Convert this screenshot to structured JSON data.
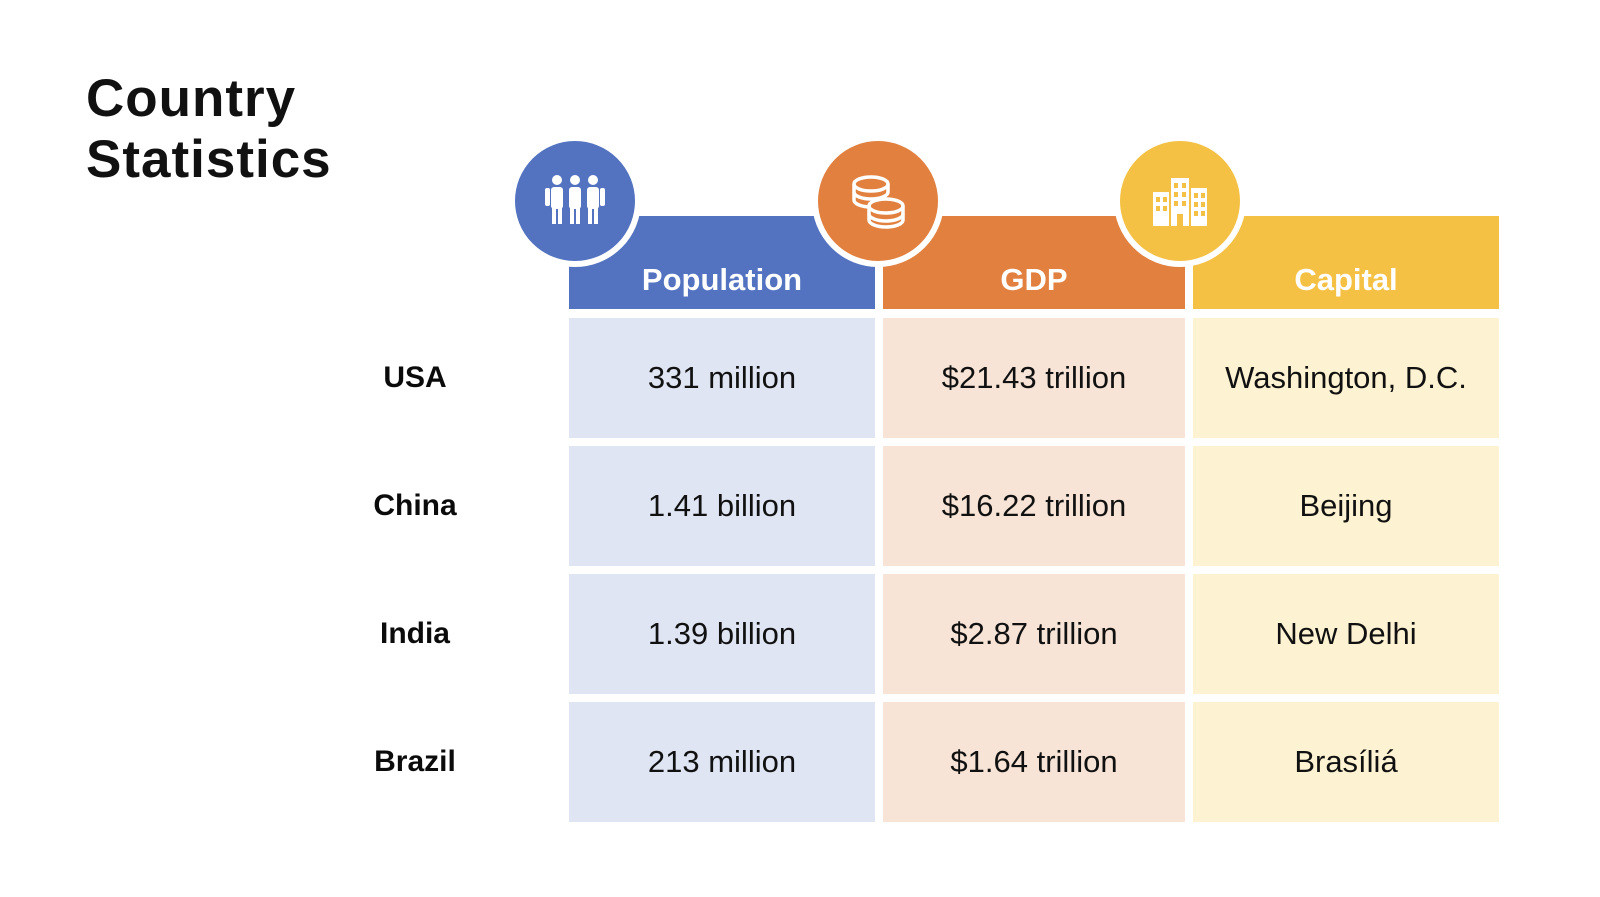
{
  "title": {
    "line1": "Country",
    "line2": "Statistics"
  },
  "colors": {
    "population": "#5373c1",
    "gdp": "#e2803f",
    "capital": "#f5c144"
  },
  "columns": [
    {
      "label": "Population",
      "icon": "people-icon"
    },
    {
      "label": "GDP",
      "icon": "coins-icon"
    },
    {
      "label": "Capital",
      "icon": "buildings-icon"
    }
  ],
  "rows": [
    {
      "country": "USA",
      "population": "331 million",
      "gdp": "$21.43 trillion",
      "capital": "Washington, D.C."
    },
    {
      "country": "China",
      "population": "1.41 billion",
      "gdp": "$16.22 trillion",
      "capital": "Beijing"
    },
    {
      "country": "India",
      "population": "1.39 billion",
      "gdp": "$2.87 trillion",
      "capital": "New Delhi"
    },
    {
      "country": "Brazil",
      "population": "213 million",
      "gdp": "$1.64 trillion",
      "capital": "Brasíliá"
    }
  ]
}
